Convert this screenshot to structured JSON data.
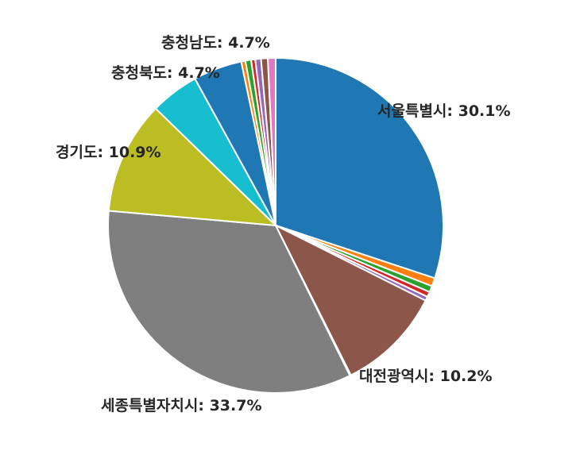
{
  "chart_data": {
    "type": "pie",
    "title": "",
    "start_angle_deg": 90,
    "direction": "clockwise",
    "background_color": "#ffffff",
    "slice_border_color": "#ffffff",
    "slices": [
      {
        "label": "서울특별시",
        "value": 30.1,
        "color": "#1f77b4"
      },
      {
        "label": "",
        "value": 0.8,
        "color": "#ff7f0e"
      },
      {
        "label": "",
        "value": 0.6,
        "color": "#2ca02c"
      },
      {
        "label": "",
        "value": 0.5,
        "color": "#d62728"
      },
      {
        "label": "",
        "value": 0.4,
        "color": "#9467bd"
      },
      {
        "label": "대전광역시",
        "value": 10.2,
        "color": "#8c564b"
      },
      {
        "label": "",
        "value": 0.1,
        "color": "#e377c2"
      },
      {
        "label": "세종특별자치시",
        "value": 33.7,
        "color": "#7f7f7f"
      },
      {
        "label": "경기도",
        "value": 10.9,
        "color": "#bcbd22"
      },
      {
        "label": "충청북도",
        "value": 4.7,
        "color": "#17becf"
      },
      {
        "label": "충청남도",
        "value": 4.7,
        "color": "#1f77b4"
      },
      {
        "label": "",
        "value": 0.4,
        "color": "#ff7f0e"
      },
      {
        "label": "",
        "value": 0.55,
        "color": "#2ca02c"
      },
      {
        "label": "",
        "value": 0.4,
        "color": "#d62728"
      },
      {
        "label": "",
        "value": 0.55,
        "color": "#9467bd"
      },
      {
        "label": "",
        "value": 0.65,
        "color": "#8c564b"
      },
      {
        "label": "",
        "value": 0.75,
        "color": "#e377c2"
      }
    ]
  },
  "annotations": [
    {
      "id": "chungnam",
      "text": "충청남도: 4.7%"
    },
    {
      "id": "chungbuk",
      "text": "충청북도: 4.7%"
    },
    {
      "id": "gyeonggi",
      "text": "경기도: 10.9%"
    },
    {
      "id": "seoul",
      "text": "서울특별시: 30.1%"
    },
    {
      "id": "daejeon",
      "text": "대전광역시: 10.2%"
    },
    {
      "id": "sejong",
      "text": "세종특별자치시: 33.7%"
    }
  ]
}
